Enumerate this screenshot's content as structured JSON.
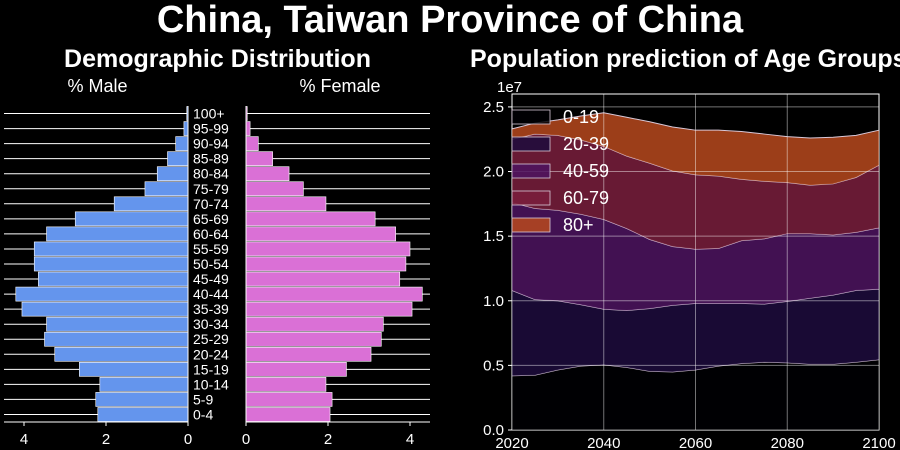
{
  "title": "China, Taiwan Province of China",
  "pyramid": {
    "title": "Demographic Distribution",
    "male_label": "% Male",
    "female_label": "% Female",
    "male_color": "#6495ED",
    "female_color": "#DA70D6"
  },
  "projection": {
    "title": "Population prediction of Age Groups",
    "exponent_label": "1e7"
  },
  "chart_data": [
    {
      "type": "bar",
      "orientation": "horizontal",
      "categories": [
        "0-4",
        "5-9",
        "10-14",
        "15-19",
        "20-24",
        "25-29",
        "30-34",
        "35-39",
        "40-44",
        "45-49",
        "50-54",
        "55-59",
        "60-64",
        "65-69",
        "70-74",
        "75-79",
        "80-84",
        "85-89",
        "90-94",
        "95-99",
        "100+"
      ],
      "series": [
        {
          "name": "% Male",
          "values": [
            2.2,
            2.25,
            2.15,
            2.65,
            3.25,
            3.5,
            3.45,
            4.05,
            4.2,
            3.65,
            3.75,
            3.75,
            3.45,
            2.75,
            1.8,
            1.05,
            0.75,
            0.5,
            0.3,
            0.1,
            0.03
          ]
        },
        {
          "name": "% Female",
          "values": [
            2.05,
            2.1,
            1.95,
            2.45,
            3.05,
            3.3,
            3.35,
            4.05,
            4.3,
            3.75,
            3.9,
            4.0,
            3.65,
            3.15,
            1.95,
            1.4,
            1.05,
            0.65,
            0.3,
            0.1,
            0.03
          ]
        }
      ],
      "xticks": [
        "4",
        "2",
        "0",
        "0",
        "2",
        "4"
      ],
      "xlim": [
        0,
        4.5
      ]
    },
    {
      "type": "area",
      "stacked": true,
      "x": [
        2020,
        2025,
        2030,
        2035,
        2040,
        2045,
        2050,
        2055,
        2060,
        2065,
        2070,
        2075,
        2080,
        2085,
        2090,
        2095,
        2100
      ],
      "series": [
        {
          "name": "0-19",
          "color": "#000004",
          "values": [
            4200000,
            4250000,
            4650000,
            4950000,
            5050000,
            4850000,
            4550000,
            4500000,
            4650000,
            4950000,
            5150000,
            5250000,
            5200000,
            5100000,
            5100000,
            5250000,
            5450000
          ]
        },
        {
          "name": "20-39",
          "color": "#1d0c3d",
          "values": [
            6600000,
            5850000,
            5350000,
            4750000,
            4300000,
            4400000,
            4850000,
            5150000,
            5150000,
            4850000,
            4650000,
            4500000,
            4750000,
            5100000,
            5350000,
            5550000,
            5450000
          ]
        },
        {
          "name": "40-59",
          "color": "#4e1460",
          "values": [
            6800000,
            7050000,
            7000000,
            7000000,
            6950000,
            6350000,
            5350000,
            4550000,
            4200000,
            4250000,
            4850000,
            5050000,
            5250000,
            5000000,
            4650000,
            4500000,
            4750000
          ]
        },
        {
          "name": "60-79",
          "color": "#7a1f3d",
          "values": [
            4900000,
            5750000,
            5800000,
            5750000,
            5650000,
            5600000,
            5900000,
            5850000,
            5750000,
            5600000,
            4750000,
            4450000,
            3950000,
            3750000,
            3950000,
            4250000,
            4850000
          ]
        },
        {
          "name": "80+",
          "color": "#b7491d",
          "values": [
            800000,
            850000,
            1200000,
            1850000,
            2600000,
            3000000,
            3200000,
            3400000,
            3450000,
            3550000,
            3700000,
            3650000,
            3550000,
            3650000,
            3600000,
            3250000,
            2700000
          ]
        }
      ],
      "xticks": [
        2020,
        2040,
        2060,
        2080,
        2100
      ],
      "yticks": [
        0,
        0.5,
        1.0,
        1.5,
        2.0,
        2.5
      ],
      "ytick_labels": [
        "0.0",
        "0.5",
        "1.0",
        "1.5",
        "2.0",
        "2.5"
      ],
      "xlim": [
        2020,
        2100
      ],
      "ylim": [
        0,
        26000000
      ],
      "grid": true,
      "legend": "top-left"
    }
  ]
}
